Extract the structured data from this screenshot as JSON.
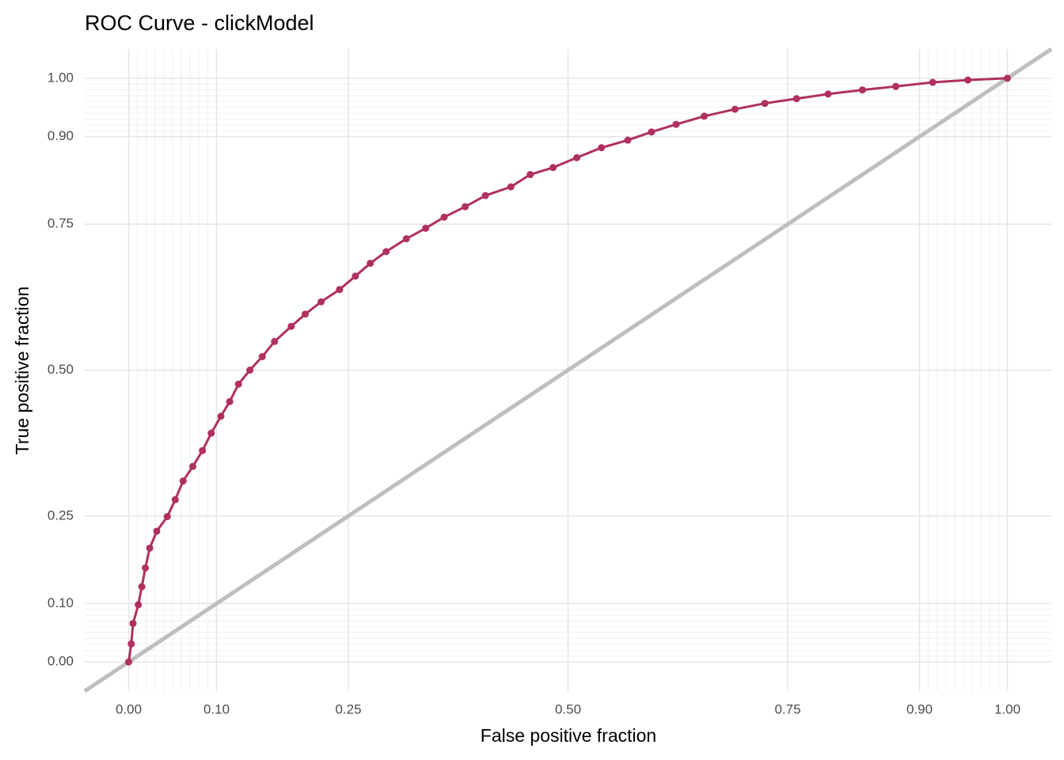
{
  "chart_data": {
    "type": "line",
    "title": "ROC Curve - clickModel",
    "xlabel": "False positive fraction",
    "ylabel": "True positive fraction",
    "x": [
      0,
      0.003,
      0.005,
      0.011,
      0.015,
      0.019,
      0.024,
      0.032,
      0.044,
      0.053,
      0.062,
      0.073,
      0.084,
      0.094,
      0.105,
      0.115,
      0.125,
      0.138,
      0.152,
      0.166,
      0.185,
      0.201,
      0.219,
      0.24,
      0.258,
      0.275,
      0.293,
      0.316,
      0.338,
      0.359,
      0.383,
      0.406,
      0.435,
      0.457,
      0.483,
      0.51,
      0.538,
      0.568,
      0.595,
      0.623,
      0.655,
      0.69,
      0.724,
      0.76,
      0.796,
      0.835,
      0.873,
      0.915,
      0.955,
      1
    ],
    "values": [
      0,
      0.031,
      0.066,
      0.098,
      0.129,
      0.161,
      0.195,
      0.224,
      0.249,
      0.278,
      0.31,
      0.335,
      0.362,
      0.392,
      0.421,
      0.446,
      0.476,
      0.5,
      0.523,
      0.549,
      0.575,
      0.596,
      0.617,
      0.638,
      0.661,
      0.683,
      0.703,
      0.725,
      0.743,
      0.762,
      0.78,
      0.799,
      0.814,
      0.835,
      0.847,
      0.864,
      0.881,
      0.894,
      0.908,
      0.921,
      0.935,
      0.947,
      0.957,
      0.965,
      0.973,
      0.98,
      0.986,
      0.993,
      0.997,
      1
    ],
    "color": "#b03060",
    "reference_color": "#bebebe",
    "xlim": [
      -0.05,
      1.05
    ],
    "ylim": [
      -0.05,
      1.05
    ],
    "xticks": [
      {
        "value": 0,
        "label": "0.00"
      },
      {
        "value": 0.1,
        "label": "0.10"
      },
      {
        "value": 0.25,
        "label": "0.25"
      },
      {
        "value": 0.5,
        "label": "0.50"
      },
      {
        "value": 0.75,
        "label": "0.75"
      },
      {
        "value": 0.9,
        "label": "0.90"
      },
      {
        "value": 1,
        "label": "1.00"
      }
    ],
    "yticks": [
      {
        "value": 0,
        "label": "0.00"
      },
      {
        "value": 0.1,
        "label": "0.10"
      },
      {
        "value": 0.25,
        "label": "0.25"
      },
      {
        "value": 0.5,
        "label": "0.50"
      },
      {
        "value": 0.75,
        "label": "0.75"
      },
      {
        "value": 0.9,
        "label": "0.90"
      },
      {
        "value": 1,
        "label": "1.00"
      }
    ],
    "minor_ticks": [
      0.01,
      0.02,
      0.03,
      0.04,
      0.05,
      0.06,
      0.07,
      0.08,
      0.09,
      0.91,
      0.92,
      0.93,
      0.94,
      0.95,
      0.96,
      0.97,
      0.98,
      0.99
    ],
    "grid": true
  }
}
